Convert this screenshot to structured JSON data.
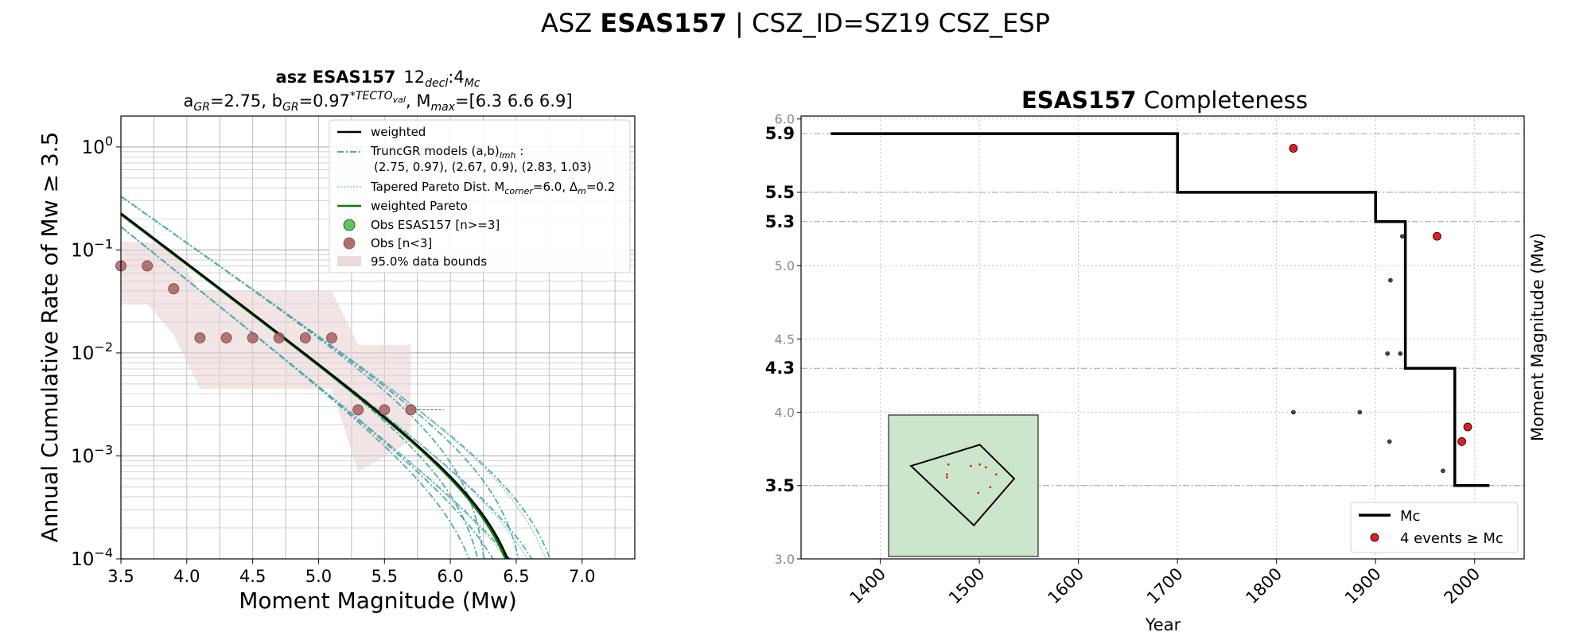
{
  "figure": {
    "suptitle_prefix": "ASZ ",
    "suptitle_bold": "ESAS157",
    "suptitle_suffix": " | CSZ_ID=SZ19 CSZ_ESP"
  },
  "chart_data": [
    {
      "type": "line",
      "title_line1_bold": "asz ESAS157",
      "title_line1_a": "12",
      "title_line1_a_sub": "decl",
      "title_line1_b": ":4",
      "title_line1_b_sub": "Mc",
      "title_line2_a": "a",
      "title_line2_a_sub": "GR",
      "title_line2_b": "=2.75,  b",
      "title_line2_b_sub": "GR",
      "title_line2_c": "=0.97",
      "title_line2_c_sup": "*TECTO",
      "title_line2_c_supsub": "val",
      "title_line2_d": ", M",
      "title_line2_d_sub": "max",
      "title_line2_e": "=[6.3 6.6 6.9]",
      "xlabel": "Moment Magnitude (Mw)",
      "ylabel": "Annual Cumulative Rate of Mw ≥ 3.5",
      "xlim": [
        3.5,
        7.4
      ],
      "ylim_log10": [
        -4,
        0.3
      ],
      "yscale": "log",
      "xticks": [
        "3.5",
        "4.0",
        "4.5",
        "5.0",
        "5.5",
        "6.0",
        "6.5",
        "7.0"
      ],
      "yticks": [
        {
          "base": "10",
          "exp": "0",
          "log10": 0
        },
        {
          "base": "10",
          "exp": "−1",
          "log10": -1
        },
        {
          "base": "10",
          "exp": "−2",
          "log10": -2
        },
        {
          "base": "10",
          "exp": "−3",
          "log10": -3
        },
        {
          "base": "10",
          "exp": "−4",
          "log10": -4
        }
      ],
      "grid": true,
      "legend_placement": "top-right",
      "legend": [
        {
          "label": "weighted",
          "style": "black-line"
        },
        {
          "label": "TruncGR models (a,b)",
          "label_sub": "lmh",
          "label_tail": " :",
          "line2": "(2.75, 0.97), (2.67, 0.9), (2.83, 1.03)",
          "style": "teal-dashdot"
        },
        {
          "label": "Tapered Pareto Dist. M",
          "label_sub": "corner",
          "label_tail": "=6.0, Δ",
          "label_sub2": "m",
          "label_tail2": "=0.2",
          "style": "teal-dotted"
        },
        {
          "label": "weighted Pareto",
          "style": "green-line"
        },
        {
          "label": "Obs ESAS157 [n>=3]",
          "style": "green-dot"
        },
        {
          "label": "Obs [n<3]",
          "style": "brown-dot"
        },
        {
          "label": "95.0% data bounds",
          "style": "pink-patch"
        }
      ],
      "models": {
        "weighted": {
          "a": 2.75,
          "b": 0.97,
          "mmax": 6.6
        },
        "truncgr": [
          {
            "a": 2.75,
            "b": 0.97,
            "mmax": [
              6.3,
              6.6,
              6.9
            ]
          },
          {
            "a": 2.67,
            "b": 0.9,
            "mmax": [
              6.3,
              6.6,
              6.9
            ]
          },
          {
            "a": 2.83,
            "b": 1.03,
            "mmax": [
              6.3,
              6.6,
              6.9
            ]
          }
        ],
        "pareto_corner": 6.0
      },
      "observations": [
        {
          "x": 3.5,
          "y": 0.07
        },
        {
          "x": 3.7,
          "y": 0.07
        },
        {
          "x": 3.9,
          "y": 0.042
        },
        {
          "x": 4.1,
          "y": 0.014
        },
        {
          "x": 4.3,
          "y": 0.014
        },
        {
          "x": 4.5,
          "y": 0.014
        },
        {
          "x": 4.7,
          "y": 0.014
        },
        {
          "x": 4.9,
          "y": 0.014
        },
        {
          "x": 5.1,
          "y": 0.014
        },
        {
          "x": 5.3,
          "y": 0.0028
        },
        {
          "x": 5.5,
          "y": 0.0028
        },
        {
          "x": 5.7,
          "y": 0.0028
        }
      ],
      "bounds": {
        "upper": [
          [
            3.5,
            0.12
          ],
          [
            3.7,
            0.12
          ],
          [
            3.9,
            0.1
          ],
          [
            4.1,
            0.04
          ],
          [
            5.1,
            0.04
          ],
          [
            5.3,
            0.012
          ],
          [
            5.7,
            0.012
          ]
        ],
        "lower": [
          [
            5.7,
            0.0014
          ],
          [
            5.3,
            0.0007
          ],
          [
            5.1,
            0.0045
          ],
          [
            4.1,
            0.0045
          ],
          [
            3.9,
            0.015
          ],
          [
            3.7,
            0.03
          ],
          [
            3.5,
            0.03
          ]
        ]
      }
    },
    {
      "type": "line",
      "title_bold": "ESAS157",
      "title_rest": " Completeness",
      "xlabel": "Year",
      "ylabel": "Moment Magnitude (Mw)",
      "xlim": [
        1320,
        2050
      ],
      "ylim": [
        3.0,
        6.02
      ],
      "xticks": [
        1400,
        1500,
        1600,
        1700,
        1800,
        1900,
        2000
      ],
      "yticks_minor": [
        "3.0",
        "3.5",
        "4.0",
        "4.5",
        "5.0",
        "5.5",
        "6.0"
      ],
      "yticks_bold": [
        {
          "label": "5.9",
          "value": 5.9
        },
        {
          "label": "5.5",
          "value": 5.5
        },
        {
          "label": "5.3",
          "value": 5.3
        },
        {
          "label": "4.3",
          "value": 4.3
        },
        {
          "label": "3.5",
          "value": 3.5
        }
      ],
      "grid": true,
      "legend_placement": "bottom-right",
      "legend": [
        {
          "label": "Mc",
          "style": "black-line"
        },
        {
          "label": "4 events ≥ Mc",
          "style": "red-dot"
        }
      ],
      "mc_steps": [
        [
          1350,
          5.9
        ],
        [
          1700,
          5.9
        ],
        [
          1700,
          5.5
        ],
        [
          1900,
          5.5
        ],
        [
          1900,
          5.3
        ],
        [
          1930,
          5.3
        ],
        [
          1930,
          4.3
        ],
        [
          1980,
          4.3
        ],
        [
          1980,
          3.5
        ],
        [
          2015,
          3.5
        ]
      ],
      "events_above_mc": [
        {
          "x": 1817,
          "y": 5.8
        },
        {
          "x": 1962,
          "y": 5.2
        },
        {
          "x": 1993,
          "y": 3.9
        },
        {
          "x": 1987,
          "y": 3.8
        }
      ],
      "events_below_mc": [
        {
          "x": 1817,
          "y": 4.0
        },
        {
          "x": 1884,
          "y": 4.0
        },
        {
          "x": 1915,
          "y": 4.9
        },
        {
          "x": 1912,
          "y": 4.4
        },
        {
          "x": 1925,
          "y": 4.4
        },
        {
          "x": 1927,
          "y": 5.2
        },
        {
          "x": 1914,
          "y": 3.8
        },
        {
          "x": 1968,
          "y": 3.6
        }
      ],
      "inset": {
        "polygon": [
          [
            0.15,
            0.36
          ],
          [
            0.61,
            0.21
          ],
          [
            0.84,
            0.45
          ],
          [
            0.57,
            0.78
          ]
        ],
        "events": [
          [
            0.4,
            0.35
          ],
          [
            0.55,
            0.36
          ],
          [
            0.61,
            0.35
          ],
          [
            0.65,
            0.37
          ],
          [
            0.72,
            0.42
          ],
          [
            0.39,
            0.42
          ],
          [
            0.68,
            0.51
          ],
          [
            0.6,
            0.55
          ],
          [
            0.39,
            0.44
          ]
        ]
      }
    }
  ]
}
